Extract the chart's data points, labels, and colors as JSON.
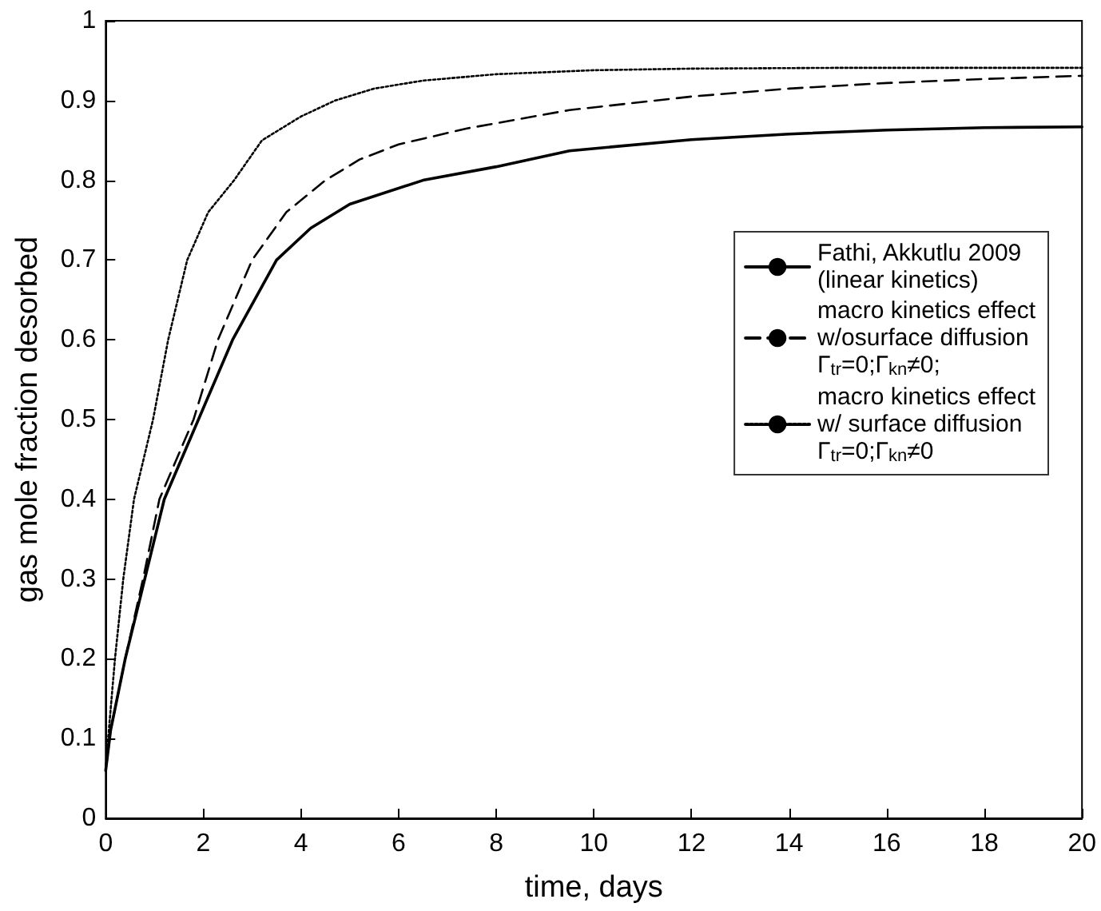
{
  "chart_data": {
    "type": "line",
    "xlabel": "time, days",
    "ylabel": "gas mole fraction desorbed",
    "xlim": [
      0,
      20
    ],
    "xticks": [
      0,
      2,
      4,
      6,
      8,
      10,
      12,
      14,
      16,
      18,
      20
    ],
    "ylim": [
      0,
      1
    ],
    "yticks": [
      0,
      0.1,
      0.2,
      0.3,
      0.4,
      0.5,
      0.6,
      0.7,
      0.8,
      0.9,
      1
    ],
    "grid": false,
    "legend": "right",
    "marker": "none",
    "series": [
      {
        "name": "Fathi, Akkutlu 2009\n(linear kinetics)",
        "color": "#000000",
        "line_style": "solid",
        "x": [
          0,
          0.1,
          0.4,
          0.8,
          1.2,
          1.9,
          2.6,
          3.5,
          4.2,
          5,
          6.5,
          8,
          9.5,
          12,
          14,
          16,
          18,
          20
        ],
        "values": [
          0.06,
          0.11,
          0.2,
          0.3,
          0.4,
          0.5,
          0.6,
          0.7,
          0.74,
          0.77,
          0.8,
          0.817,
          0.837,
          0.851,
          0.858,
          0.863,
          0.866,
          0.867
        ]
      },
      {
        "name": "macro kinetics effect\nw/osurface diffusion\nΓ$_{tr}$=0;Γ$_{kn}$≠0;",
        "color": "#000000",
        "line_style": "dashed",
        "x": [
          0,
          0.1,
          0.4,
          0.8,
          1.1,
          1.8,
          2.3,
          3,
          3.7,
          4.5,
          5.2,
          6,
          7.4,
          9.5,
          12,
          14,
          16,
          18,
          20
        ],
        "values": [
          0.06,
          0.11,
          0.2,
          0.31,
          0.4,
          0.5,
          0.6,
          0.7,
          0.76,
          0.8,
          0.826,
          0.845,
          0.865,
          0.888,
          0.905,
          0.915,
          0.922,
          0.927,
          0.931
        ]
      },
      {
        "name": "macro kinetics effect\nw/ surface diffusion\nΓ$_{tr}$=0;Γ$_{kn}$≠0",
        "color": "#000000",
        "line_style": "dotted",
        "x": [
          0,
          0.05,
          0.19,
          0.36,
          0.58,
          0.97,
          1.28,
          1.67,
          2.1,
          2.63,
          3.2,
          4,
          4.7,
          5.5,
          6.5,
          8,
          10,
          12,
          15,
          20
        ],
        "values": [
          0.06,
          0.1,
          0.2,
          0.3,
          0.4,
          0.5,
          0.6,
          0.7,
          0.76,
          0.8,
          0.85,
          0.88,
          0.9,
          0.915,
          0.925,
          0.933,
          0.938,
          0.94,
          0.941,
          0.941
        ]
      }
    ]
  }
}
